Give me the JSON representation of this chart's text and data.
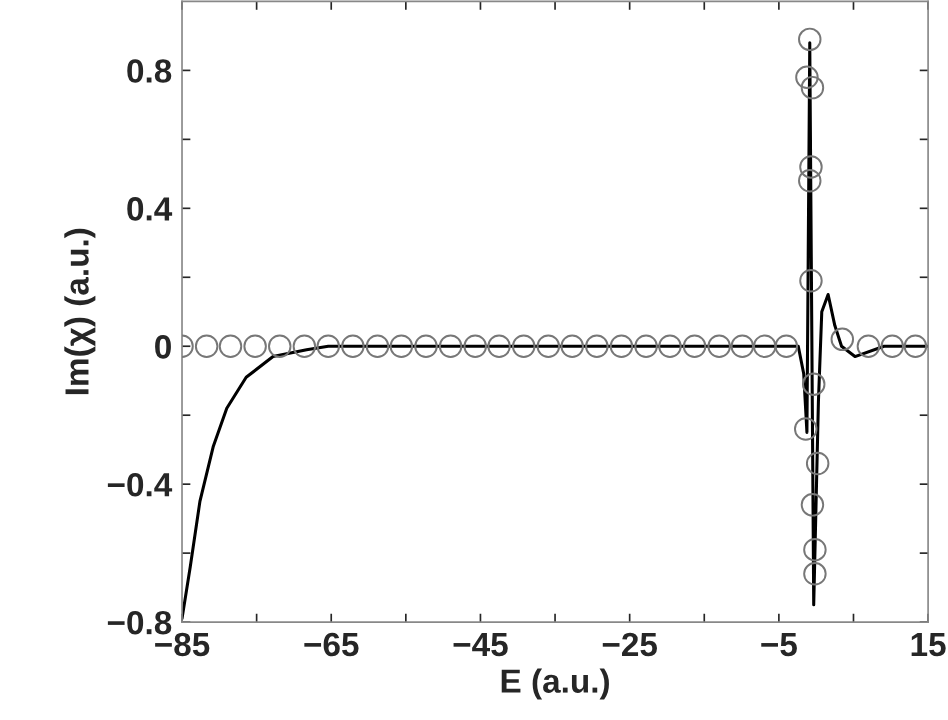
{
  "chart_data": {
    "type": "line",
    "xlabel": "E (a.u.)",
    "ylabel": "Im(χ) (a.u.)",
    "xlim": [
      -85,
      15
    ],
    "ylim": [
      -0.8,
      1.0
    ],
    "xticks": [
      -85,
      {
        "value": -75,
        "label": null
      },
      -65,
      {
        "value": -55,
        "label": null
      },
      -45,
      {
        "value": -35,
        "label": null
      },
      -25,
      {
        "value": -15,
        "label": null
      },
      -5,
      {
        "value": 5,
        "label": null
      },
      15
    ],
    "yticks": [
      -0.8,
      {
        "value": -0.6,
        "label": null
      },
      -0.4,
      {
        "value": -0.2,
        "label": null
      },
      0,
      {
        "value": 0.2,
        "label": null
      },
      0.4,
      {
        "value": 0.6,
        "label": null
      },
      0.8
    ],
    "grid": false,
    "series": [
      {
        "color": "#000000",
        "marker": "none",
        "line_style": "solid",
        "x": [
          -85,
          -83.9,
          -82.6,
          -80.8,
          -79.0,
          -76.4,
          -72.8,
          -68.3,
          -65.4,
          -2.4,
          -1.67,
          -1.24,
          -0.86,
          -0.33,
          0.3,
          0.75,
          1.6,
          2.5,
          3.4,
          5.2,
          9.1,
          15
        ],
        "values": [
          -0.79,
          -0.64,
          -0.45,
          -0.29,
          -0.18,
          -0.09,
          -0.03,
          -0.01,
          0,
          0,
          -0.08,
          -0.25,
          0.88,
          -0.75,
          -0.16,
          0.1,
          0.15,
          0.06,
          0,
          -0.03,
          0,
          0
        ]
      },
      {
        "type": "scatter",
        "color": "#777777",
        "marker": "circle",
        "x": [
          -85,
          -81.7,
          -78.5,
          -75.2,
          -71.9,
          -68.6,
          -65.4,
          -62.1,
          -58.8,
          -55.6,
          -52.3,
          -49.0,
          -45.7,
          -42.5,
          -39.2,
          -35.9,
          -32.7,
          -29.4,
          -26.1,
          -22.8,
          -19.6,
          -16.3,
          -13.0,
          -9.9,
          -6.9,
          -4.0,
          -0.86,
          -1.24,
          -0.5,
          -0.7,
          -0.86,
          -0.7,
          -0.33,
          -1.4,
          0.2,
          -0.5,
          -0.17,
          -0.17,
          3.5,
          7.0,
          10.2,
          13.3
        ],
        "values": [
          0,
          0,
          0,
          0,
          0,
          0,
          0,
          0,
          0,
          0,
          0,
          0,
          0,
          0,
          0,
          0,
          0,
          0,
          0,
          0,
          0,
          0,
          0,
          0,
          0,
          0,
          0.89,
          0.78,
          0.75,
          0.52,
          0.48,
          0.19,
          -0.11,
          -0.24,
          -0.34,
          -0.46,
          -0.59,
          -0.66,
          0.02,
          0,
          0,
          0
        ]
      }
    ]
  }
}
